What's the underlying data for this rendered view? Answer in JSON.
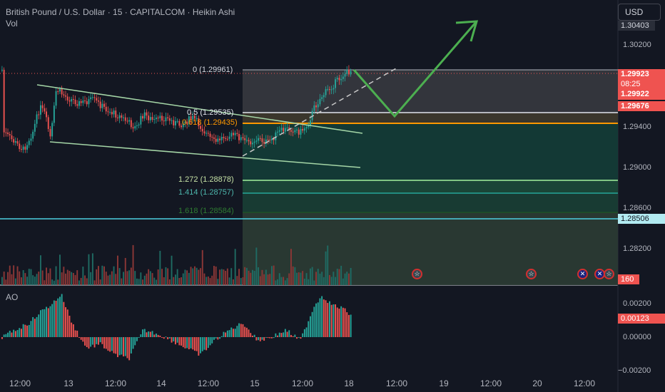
{
  "header": {
    "title": "British Pound / U.S. Dollar · 15 · CAPITALCOM · Heikin Ashi",
    "vol_label": "Vol",
    "ao_label": "AO",
    "currency_button": "USD"
  },
  "colors": {
    "background": "#131722",
    "bull": "#26a69a",
    "bear": "#ef5350",
    "forecast_arrow": "#4caf50",
    "fib_half": "#ffffff",
    "fib_618": "#ff9800",
    "fib_ext": "#66bb6a",
    "support_line": "#4dd0e1"
  },
  "price_axis": {
    "labels": [
      "1.30200",
      "1.29400",
      "1.29000",
      "1.28600",
      "1.28200"
    ],
    "top_tag": "1.30403",
    "current_price": "1.29923",
    "countdown": "08:25",
    "price_2": "1.29922",
    "price_3": "1.29676",
    "support_price": "1.28506",
    "volume_value": "160"
  },
  "ao_axis": {
    "labels": [
      "0.00200",
      "0.00000",
      "−0.00200"
    ],
    "current": "0.00123"
  },
  "time_axis": [
    "12:00",
    "13",
    "12:00",
    "14",
    "12:00",
    "15",
    "12:00",
    "18",
    "12:00",
    "19",
    "12:00",
    "20",
    "12:00"
  ],
  "fib_levels": {
    "level_0": "0 (1.29961)",
    "level_05": "0.5 (1.29535)",
    "level_618": "0.618 (1.29435)",
    "level_1272": "1.272 (1.28878)",
    "level_1414": "1.414 (1.28757)",
    "level_1618": "1.618 (1.28584)"
  },
  "event_icons": [
    "us-flag-icon",
    "us-flag-icon",
    "uk-flag-icon",
    "uk-flag-icon",
    "us-flag-icon"
  ]
}
